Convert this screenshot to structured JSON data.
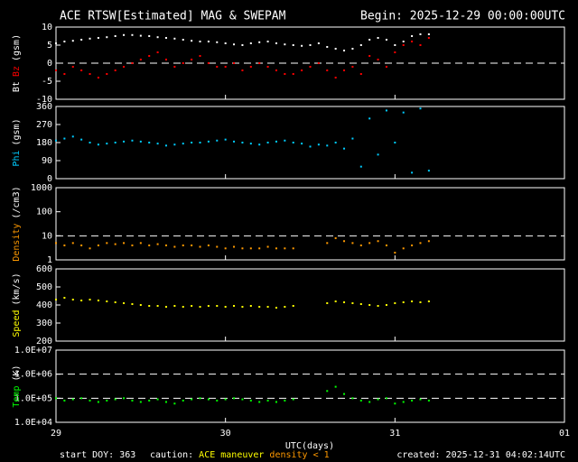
{
  "header": {
    "title": "ACE RTSW[Estimated] MAG & SWEPAM",
    "begin": "Begin: 2025-12-29 00:00:00UTC"
  },
  "footer": {
    "start": "start DOY: 363",
    "caution": [
      {
        "text": "caution:",
        "color": "#ffffff"
      },
      {
        "text": "ACE maneuver",
        "color": "#ffff00"
      },
      {
        "text": "density < 1",
        "color": "#ff9900"
      }
    ],
    "created": "created: 2025-12-31 04:02:14UTC"
  },
  "xlabel": "UTC(days)",
  "xlim": [
    29,
    32
  ],
  "xticks": [
    29,
    30,
    31,
    {
      "value": 32,
      "label": "01"
    }
  ],
  "chart_data": [
    {
      "type": "scatter",
      "ylabel": [
        {
          "text": "Bt",
          "color": "#ffffff"
        },
        {
          "text": "Bz",
          "color": "#ff0000"
        },
        {
          "text": "(gsm)",
          "color": "#ffffff"
        }
      ],
      "ylim": [
        -10,
        10
      ],
      "yticks": [
        -10,
        -5,
        0,
        5,
        10
      ],
      "reference_lines": [
        0
      ],
      "log": false,
      "x": [
        29.0,
        29.05,
        29.1,
        29.15,
        29.2,
        29.25,
        29.3,
        29.35,
        29.4,
        29.45,
        29.5,
        29.55,
        29.6,
        29.65,
        29.7,
        29.75,
        29.8,
        29.85,
        29.9,
        29.95,
        30.0,
        30.05,
        30.1,
        30.15,
        30.2,
        30.25,
        30.3,
        30.35,
        30.4,
        30.45,
        30.5,
        30.55,
        30.6,
        30.65,
        30.7,
        30.75,
        30.8,
        30.85,
        30.9,
        30.95,
        31.0,
        31.05,
        31.1,
        31.15,
        31.2
      ],
      "series": [
        {
          "name": "Bt",
          "color": "#ffffff",
          "values": [
            5.5,
            6,
            6.2,
            6.5,
            6.8,
            7,
            7.2,
            7.5,
            7.8,
            7.8,
            7.6,
            7.5,
            7.2,
            7,
            6.8,
            6.5,
            6.2,
            6,
            6,
            5.8,
            5.5,
            5.2,
            5,
            5.5,
            5.8,
            6,
            5.5,
            5.2,
            5,
            4.8,
            5,
            5.5,
            4.5,
            4,
            3.5,
            4,
            5,
            6.5,
            7,
            6.5,
            5,
            6,
            7.5,
            8,
            8
          ]
        },
        {
          "name": "Bz",
          "color": "#ff0000",
          "values": [
            -2,
            -3,
            -1,
            -2,
            -3,
            -4,
            -3,
            -2,
            -1,
            0,
            1,
            2,
            3,
            1,
            -1,
            0,
            1,
            2,
            0,
            -1,
            -1,
            0,
            -2,
            -1,
            0,
            -1,
            -2,
            -3,
            -3,
            -2,
            -1,
            0,
            -2,
            -4,
            -2,
            -1,
            -3,
            2,
            1,
            -1,
            3,
            5,
            6,
            5,
            7
          ]
        }
      ]
    },
    {
      "type": "scatter",
      "ylabel": [
        {
          "text": "Phi",
          "color": "#00ccff"
        },
        {
          "text": "(gsm)",
          "color": "#ffffff"
        }
      ],
      "ylim": [
        0,
        360
      ],
      "yticks": [
        0,
        90,
        180,
        270,
        360
      ],
      "reference_lines": [],
      "log": false,
      "x": [
        29.0,
        29.05,
        29.1,
        29.15,
        29.2,
        29.25,
        29.3,
        29.35,
        29.4,
        29.45,
        29.5,
        29.55,
        29.6,
        29.65,
        29.7,
        29.75,
        29.8,
        29.85,
        29.9,
        29.95,
        30.0,
        30.05,
        30.1,
        30.15,
        30.2,
        30.25,
        30.3,
        30.35,
        30.4,
        30.45,
        30.5,
        30.55,
        30.6,
        30.65,
        30.7,
        30.75,
        30.8,
        30.85,
        30.9,
        30.95,
        31.0,
        31.05,
        31.1,
        31.15,
        31.2
      ],
      "series": [
        {
          "name": "Phi",
          "color": "#00ccff",
          "values": [
            190,
            200,
            210,
            195,
            180,
            170,
            175,
            180,
            185,
            190,
            185,
            180,
            175,
            165,
            170,
            175,
            180,
            180,
            185,
            190,
            195,
            185,
            180,
            175,
            170,
            180,
            185,
            190,
            180,
            175,
            160,
            170,
            165,
            180,
            150,
            200,
            60,
            300,
            120,
            340,
            180,
            330,
            30,
            350,
            40
          ]
        }
      ]
    },
    {
      "type": "scatter",
      "ylabel": [
        {
          "text": "Density",
          "color": "#ff9900"
        },
        {
          "text": "(/cm3)",
          "color": "#ffffff"
        }
      ],
      "ylim": [
        1,
        1000
      ],
      "yticks": [
        1,
        10,
        100,
        1000
      ],
      "reference_lines": [
        10
      ],
      "log": true,
      "x": [
        29.0,
        29.05,
        29.1,
        29.15,
        29.2,
        29.25,
        29.3,
        29.35,
        29.4,
        29.45,
        29.5,
        29.55,
        29.6,
        29.65,
        29.7,
        29.75,
        29.8,
        29.85,
        29.9,
        29.95,
        30.0,
        30.05,
        30.1,
        30.15,
        30.2,
        30.25,
        30.3,
        30.35,
        30.4,
        30.45,
        30.5,
        30.55,
        30.6,
        30.65,
        30.7,
        30.75,
        30.8,
        30.85,
        30.9,
        30.95,
        31.0,
        31.05,
        31.1,
        31.15,
        31.2
      ],
      "series": [
        {
          "name": "Density",
          "color": "#ff9900",
          "values": [
            5,
            4,
            5,
            4,
            3,
            4,
            5,
            4.5,
            5,
            4,
            5,
            4,
            4.5,
            4,
            3.5,
            4,
            4,
            3.5,
            4,
            3.5,
            3,
            3.5,
            3,
            3,
            3,
            3.5,
            3,
            3,
            3,
            null,
            null,
            null,
            5,
            8,
            6,
            5,
            4,
            5,
            6,
            4,
            2,
            3,
            4,
            5,
            6
          ]
        }
      ]
    },
    {
      "type": "scatter",
      "ylabel": [
        {
          "text": "Speed",
          "color": "#ffff00"
        },
        {
          "text": "(km/s)",
          "color": "#ffffff"
        }
      ],
      "ylim": [
        200,
        600
      ],
      "yticks": [
        200,
        300,
        400,
        500,
        600
      ],
      "reference_lines": [],
      "log": false,
      "x": [
        29.0,
        29.05,
        29.1,
        29.15,
        29.2,
        29.25,
        29.3,
        29.35,
        29.4,
        29.45,
        29.5,
        29.55,
        29.6,
        29.65,
        29.7,
        29.75,
        29.8,
        29.85,
        29.9,
        29.95,
        30.0,
        30.05,
        30.1,
        30.15,
        30.2,
        30.25,
        30.3,
        30.35,
        30.4,
        30.45,
        30.5,
        30.55,
        30.6,
        30.65,
        30.7,
        30.75,
        30.8,
        30.85,
        30.9,
        30.95,
        31.0,
        31.05,
        31.1,
        31.15,
        31.2
      ],
      "series": [
        {
          "name": "Speed",
          "color": "#ffff00",
          "values": [
            430,
            440,
            430,
            425,
            430,
            425,
            420,
            415,
            410,
            405,
            400,
            395,
            395,
            390,
            395,
            390,
            395,
            390,
            395,
            395,
            390,
            395,
            390,
            395,
            390,
            390,
            385,
            390,
            395,
            null,
            null,
            null,
            410,
            420,
            415,
            410,
            405,
            400,
            395,
            400,
            410,
            415,
            420,
            415,
            420
          ]
        }
      ]
    },
    {
      "type": "scatter",
      "ylabel": [
        {
          "text": "Temp",
          "color": "#00ff00"
        },
        {
          "text": "(K)",
          "color": "#ffffff"
        }
      ],
      "ylim": [
        10000,
        10000000
      ],
      "yticks": [
        {
          "value": 10000,
          "label": "1.0E+04"
        },
        {
          "value": 100000,
          "label": "1.0E+05"
        },
        {
          "value": 1000000,
          "label": "1.0E+06"
        },
        {
          "value": 10000000,
          "label": "1.0E+07"
        }
      ],
      "reference_lines": [
        100000,
        1000000
      ],
      "log": true,
      "x": [
        29.0,
        29.05,
        29.1,
        29.15,
        29.2,
        29.25,
        29.3,
        29.35,
        29.4,
        29.45,
        29.5,
        29.55,
        29.6,
        29.65,
        29.7,
        29.75,
        29.8,
        29.85,
        29.9,
        29.95,
        30.0,
        30.05,
        30.1,
        30.15,
        30.2,
        30.25,
        30.3,
        30.35,
        30.4,
        30.45,
        30.5,
        30.55,
        30.6,
        30.65,
        30.7,
        30.75,
        30.8,
        30.85,
        30.9,
        30.95,
        31.0,
        31.05,
        31.1,
        31.15,
        31.2
      ],
      "series": [
        {
          "name": "Temp",
          "color": "#00ff00",
          "values": [
            100000,
            80000,
            90000,
            100000,
            80000,
            70000,
            80000,
            90000,
            100000,
            80000,
            70000,
            80000,
            90000,
            70000,
            60000,
            80000,
            90000,
            100000,
            90000,
            80000,
            90000,
            100000,
            90000,
            80000,
            70000,
            80000,
            70000,
            80000,
            90000,
            null,
            null,
            null,
            200000,
            300000,
            150000,
            100000,
            80000,
            70000,
            90000,
            100000,
            60000,
            70000,
            80000,
            90000,
            80000
          ]
        }
      ]
    }
  ]
}
